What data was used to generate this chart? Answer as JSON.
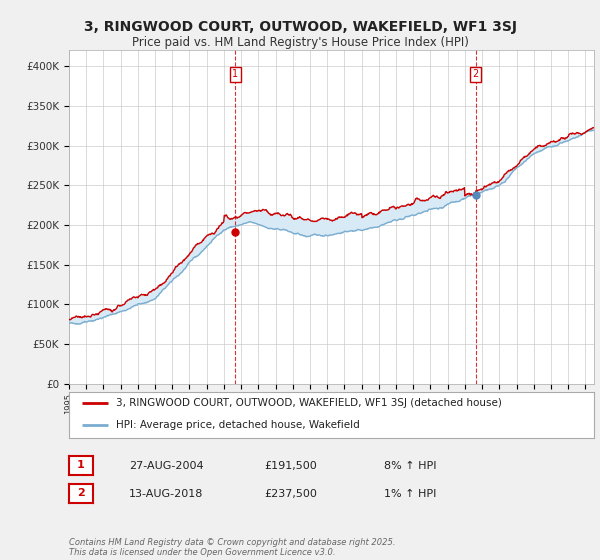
{
  "title": "3, RINGWOOD COURT, OUTWOOD, WAKEFIELD, WF1 3SJ",
  "subtitle": "Price paid vs. HM Land Registry's House Price Index (HPI)",
  "ylabel_ticks": [
    "£0",
    "£50K",
    "£100K",
    "£150K",
    "£200K",
    "£250K",
    "£300K",
    "£350K",
    "£400K"
  ],
  "ytick_values": [
    0,
    50000,
    100000,
    150000,
    200000,
    250000,
    300000,
    350000,
    400000
  ],
  "ylim": [
    0,
    420000
  ],
  "sale1": {
    "date_num": 2004.65,
    "price": 191500,
    "label": "1",
    "display": "27-AUG-2004",
    "amount": "£191,500",
    "hpi": "8% ↑ HPI"
  },
  "sale2": {
    "date_num": 2018.62,
    "price": 237500,
    "label": "2",
    "display": "13-AUG-2018",
    "amount": "£237,500",
    "hpi": "1% ↑ HPI"
  },
  "legend_line1": "3, RINGWOOD COURT, OUTWOOD, WAKEFIELD, WF1 3SJ (detached house)",
  "legend_line2": "HPI: Average price, detached house, Wakefield",
  "footer": "Contains HM Land Registry data © Crown copyright and database right 2025.\nThis data is licensed under the Open Government Licence v3.0.",
  "line_color_red": "#cc0000",
  "line_color_blue": "#7aadcf",
  "fill_color": "#d8eaf5",
  "vline_color": "#cc0000",
  "background_color": "#f0f0f0",
  "plot_bg_color": "#ffffff",
  "title_fontsize": 10,
  "subtitle_fontsize": 8.5,
  "tick_fontsize": 7.5,
  "xlim_start": 1995,
  "xlim_end": 2025.5
}
